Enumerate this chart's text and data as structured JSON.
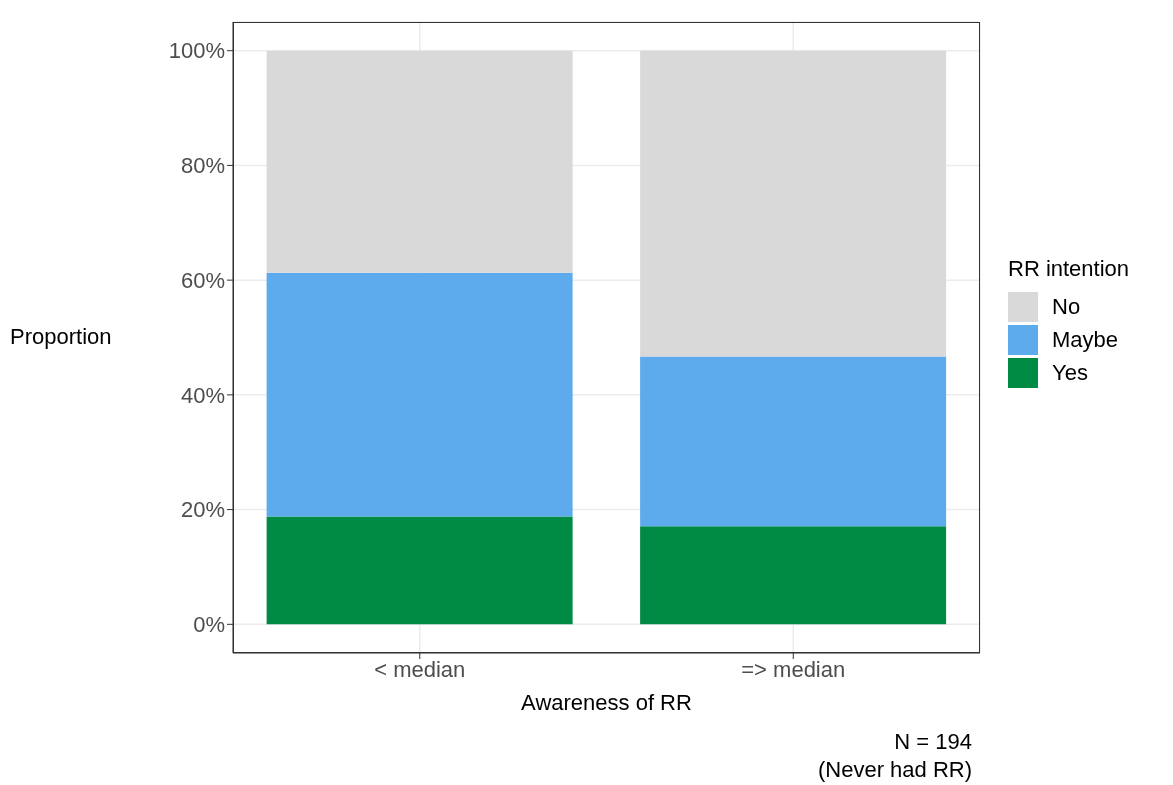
{
  "chart_data": {
    "type": "bar",
    "stacked": true,
    "xlabel": "Awareness of RR",
    "ylabel": "Proportion",
    "legend_title": "RR intention",
    "categories": [
      "< median",
      "=> median"
    ],
    "series": [
      {
        "name": "Yes",
        "color": "#008b45",
        "values": [
          18.8,
          17.1
        ]
      },
      {
        "name": "Maybe",
        "color": "#5dabec",
        "values": [
          42.5,
          29.6
        ]
      },
      {
        "name": "No",
        "color": "#d9d9d9",
        "values": [
          38.7,
          53.3
        ]
      }
    ],
    "ylim": [
      -5,
      105
    ],
    "yticks": [
      {
        "value": 0,
        "label": "0%"
      },
      {
        "value": 20,
        "label": "20%"
      },
      {
        "value": 40,
        "label": "40%"
      },
      {
        "value": 60,
        "label": "60%"
      },
      {
        "value": 80,
        "label": "80%"
      },
      {
        "value": 100,
        "label": "100%"
      }
    ],
    "grid": true,
    "legend": "right",
    "annotations": [
      "N = 194\n(Never had RR)"
    ]
  }
}
